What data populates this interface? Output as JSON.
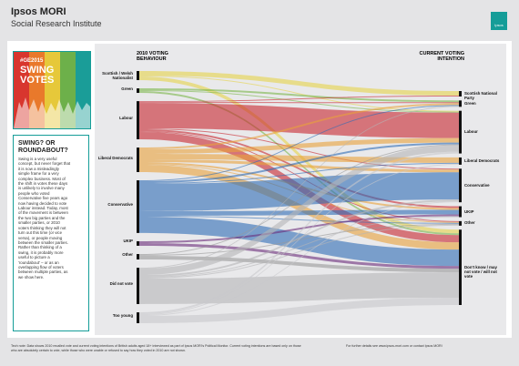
{
  "header": {
    "title": "Ipsos MORI",
    "subtitle": "Social Research Institute",
    "logo": "Ipsos"
  },
  "sidebar": {
    "tag": "#GE2015",
    "heading": "SWING VOTES",
    "question": "SWING? OR ROUNDABOUT?",
    "body": "Swing is a very useful concept, but never forget that it is now a misleadingly simple frame for a very complex business. Most of the shift in votes these days is unlikely to involve many people who voted Conservative five years ago now having decided to vote Labour instead. Today, most of the movement is between the two big parties and the smaller parties, or 2010 voters thinking they will not turn out this time (or vice versa), or people moving between the smaller parties. Rather than thinking of a swing, it is probably more useful to picture a 'roundabout' – or as an overlapping flow of voters between multiple parties, as we show here."
  },
  "chart_data": {
    "type": "sankey",
    "source_title": "2010 VOTING BEHAVIOUR",
    "target_title": "CURRENT VOTING INTENTION",
    "categories": [
      "Scottish National Party",
      "Green",
      "Labour",
      "Liberal Democrats",
      "Conservative",
      "UKIP",
      "Other",
      "Don't know / may not vote / will not vote"
    ],
    "category_colors": [
      "#e6d34a",
      "#7ab648",
      "#c8262f",
      "#e9a23b",
      "#2f6db5",
      "#6a2c7a",
      "#9a9a9a",
      "#bdbdc1"
    ],
    "series": [
      {
        "name": "Scottish / Welsh Nationalist",
        "color": "#e6d34a",
        "values": [
          5,
          0,
          1,
          0,
          0,
          0,
          0,
          4
        ]
      },
      {
        "name": "Green",
        "color": "#7ab648",
        "values": [
          0,
          2,
          1,
          0,
          0,
          0,
          0,
          2
        ]
      },
      {
        "name": "Labour",
        "color": "#c8262f",
        "values": [
          1,
          1,
          28,
          0,
          1,
          2,
          1,
          8
        ]
      },
      {
        "name": "Liberal Democrats",
        "color": "#e9a23b",
        "values": [
          0,
          2,
          5,
          6,
          3,
          2,
          1,
          8
        ]
      },
      {
        "name": "Conservative",
        "color": "#2f6db5",
        "values": [
          0,
          1,
          2,
          1,
          30,
          5,
          1,
          18
        ]
      },
      {
        "name": "UKIP",
        "color": "#6a2c7a",
        "values": [
          0,
          0,
          0,
          0,
          0,
          2,
          0,
          3
        ]
      },
      {
        "name": "Other",
        "color": "#9a9a9a",
        "values": [
          0,
          0,
          1,
          0,
          0,
          0,
          1,
          4
        ]
      },
      {
        "name": "Did not vote",
        "color": "#b5b5b8",
        "values": [
          0,
          1,
          7,
          0,
          2,
          1,
          1,
          28
        ]
      },
      {
        "name": "Too young",
        "color": "#c8c8cc",
        "values": [
          0,
          0,
          2,
          1,
          1,
          0,
          0,
          8
        ]
      }
    ]
  },
  "footer": {
    "note": "Tech note: Data shows 2010 recalled vote and current voting intentions of British adults aged 18+ interviewed as part of Ipsos MORI's Political Monitor. Current voting intentions are based only on those who are absolutely certain to vote, while those who were unable or refused to say how they voted in 2010 are not shown.",
    "contact": "For further details see www.ipsos-mori.com or contact Ipsos MORI"
  }
}
